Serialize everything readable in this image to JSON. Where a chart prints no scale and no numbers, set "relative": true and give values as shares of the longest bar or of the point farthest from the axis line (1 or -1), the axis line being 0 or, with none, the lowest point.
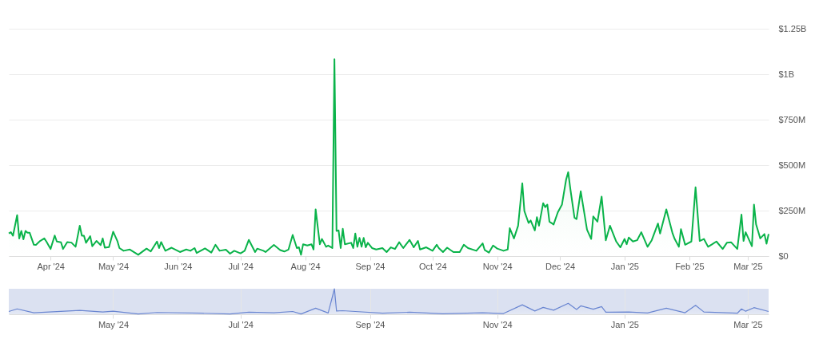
{
  "chart_data": [
    {
      "type": "area",
      "x": [
        "2024-03-12",
        "2024-03-13",
        "2024-03-14",
        "2024-03-16",
        "2024-03-17",
        "2024-03-18",
        "2024-03-19",
        "2024-03-20",
        "2024-03-21",
        "2024-03-22",
        "2024-03-24",
        "2024-03-25",
        "2024-03-27",
        "2024-03-29",
        "2024-03-30",
        "2024-04-01",
        "2024-04-03",
        "2024-04-04",
        "2024-04-06",
        "2024-04-07",
        "2024-04-09",
        "2024-04-11",
        "2024-04-13",
        "2024-04-15",
        "2024-04-16",
        "2024-04-17",
        "2024-04-18",
        "2024-04-20",
        "2024-04-21",
        "2024-04-23",
        "2024-04-25",
        "2024-04-26",
        "2024-04-27",
        "2024-04-29",
        "2024-05-01",
        "2024-05-03",
        "2024-05-04",
        "2024-05-06",
        "2024-05-09",
        "2024-05-13",
        "2024-05-17",
        "2024-05-19",
        "2024-05-22",
        "2024-05-23",
        "2024-05-24",
        "2024-05-26",
        "2024-05-29",
        "2024-06-02",
        "2024-06-05",
        "2024-06-07",
        "2024-06-09",
        "2024-06-10",
        "2024-06-14",
        "2024-06-17",
        "2024-06-19",
        "2024-06-21",
        "2024-06-24",
        "2024-06-26",
        "2024-06-28",
        "2024-07-01",
        "2024-07-03",
        "2024-07-05",
        "2024-07-08",
        "2024-07-09",
        "2024-07-12",
        "2024-07-13",
        "2024-07-17",
        "2024-07-20",
        "2024-07-22",
        "2024-07-24",
        "2024-07-26",
        "2024-07-28",
        "2024-07-29",
        "2024-07-30",
        "2024-07-31",
        "2024-08-02",
        "2024-08-04",
        "2024-08-05",
        "2024-08-06",
        "2024-08-08",
        "2024-08-09",
        "2024-08-11",
        "2024-08-12",
        "2024-08-14",
        "2024-08-15",
        "2024-08-16",
        "2024-08-17",
        "2024-08-18",
        "2024-08-19",
        "2024-08-20",
        "2024-08-23",
        "2024-08-24",
        "2024-08-25",
        "2024-08-26",
        "2024-08-27",
        "2024-08-28",
        "2024-08-29",
        "2024-08-30",
        "2024-08-31",
        "2024-09-02",
        "2024-09-04",
        "2024-09-07",
        "2024-09-09",
        "2024-09-11",
        "2024-09-13",
        "2024-09-15",
        "2024-09-17",
        "2024-09-20",
        "2024-09-22",
        "2024-09-24",
        "2024-09-25",
        "2024-09-28",
        "2024-10-01",
        "2024-10-03",
        "2024-10-04",
        "2024-10-06",
        "2024-10-08",
        "2024-10-11",
        "2024-10-14",
        "2024-10-16",
        "2024-10-18",
        "2024-10-22",
        "2024-10-25",
        "2024-10-26",
        "2024-10-28",
        "2024-10-30",
        "2024-11-01",
        "2024-11-04",
        "2024-11-06",
        "2024-11-07",
        "2024-11-09",
        "2024-11-11",
        "2024-11-13",
        "2024-11-14",
        "2024-11-16",
        "2024-11-17",
        "2024-11-19",
        "2024-11-20",
        "2024-11-21",
        "2024-11-23",
        "2024-11-24",
        "2024-11-25",
        "2024-11-26",
        "2024-11-28",
        "2024-11-30",
        "2024-12-02",
        "2024-12-04",
        "2024-12-05",
        "2024-12-06",
        "2024-12-08",
        "2024-12-09",
        "2024-12-11",
        "2024-12-12",
        "2024-12-14",
        "2024-12-16",
        "2024-12-17",
        "2024-12-19",
        "2024-12-21",
        "2024-12-23",
        "2024-12-25",
        "2024-12-28",
        "2024-12-30",
        "2025-01-01",
        "2025-01-02",
        "2025-01-03",
        "2025-01-05",
        "2025-01-07",
        "2025-01-09",
        "2025-01-12",
        "2025-01-14",
        "2025-01-17",
        "2025-01-18",
        "2025-01-21",
        "2025-01-24",
        "2025-01-25",
        "2025-01-27",
        "2025-01-28",
        "2025-01-30",
        "2025-02-02",
        "2025-02-04",
        "2025-02-06",
        "2025-02-08",
        "2025-02-10",
        "2025-02-12",
        "2025-02-14",
        "2025-02-17",
        "2025-02-19",
        "2025-02-21",
        "2025-02-24",
        "2025-02-26",
        "2025-02-27",
        "2025-02-28",
        "2025-03-03",
        "2025-03-04",
        "2025-03-05",
        "2025-03-07",
        "2025-03-09",
        "2025-03-10",
        "2025-03-11"
      ],
      "series": [
        {
          "color": "#0ab34a",
          "values": [
            124000000.0,
            131000000.0,
            112000000.0,
            225000000.0,
            97000000.0,
            138000000.0,
            92000000.0,
            138000000.0,
            128000000.0,
            128000000.0,
            62000000.0,
            61000000.0,
            83000000.0,
            97000000.0,
            80000000.0,
            39000000.0,
            113000000.0,
            80000000.0,
            76000000.0,
            39000000.0,
            77000000.0,
            74000000.0,
            51000000.0,
            167000000.0,
            112000000.0,
            112000000.0,
            73000000.0,
            109000000.0,
            54000000.0,
            83000000.0,
            60000000.0,
            97000000.0,
            46000000.0,
            49000000.0,
            134000000.0,
            83000000.0,
            44000000.0,
            29000000.0,
            36000000.0,
            7000000.0,
            41000000.0,
            25000000.0,
            80000000.0,
            44000000.0,
            77000000.0,
            29000000.0,
            46000000.0,
            22000000.0,
            36000000.0,
            29000000.0,
            44000000.0,
            17000000.0,
            42000000.0,
            19000000.0,
            62000000.0,
            29000000.0,
            35000000.0,
            13000000.0,
            29000000.0,
            15000000.0,
            29000000.0,
            89000000.0,
            22000000.0,
            41000000.0,
            29000000.0,
            22000000.0,
            61000000.0,
            33000000.0,
            25000000.0,
            36000000.0,
            116000000.0,
            44000000.0,
            48000000.0,
            7000000.0,
            65000000.0,
            58000000.0,
            65000000.0,
            36000000.0,
            257000000.0,
            65000000.0,
            94000000.0,
            51000000.0,
            58000000.0,
            44000000.0,
            1082000000.0,
            138000000.0,
            141000000.0,
            44000000.0,
            150000000.0,
            65000000.0,
            73000000.0,
            44000000.0,
            124000000.0,
            51000000.0,
            100000000.0,
            51000000.0,
            100000000.0,
            48000000.0,
            73000000.0,
            44000000.0,
            36000000.0,
            44000000.0,
            22000000.0,
            48000000.0,
            39000000.0,
            76000000.0,
            44000000.0,
            89000000.0,
            48000000.0,
            83000000.0,
            36000000.0,
            48000000.0,
            29000000.0,
            62000000.0,
            44000000.0,
            22000000.0,
            46000000.0,
            22000000.0,
            22000000.0,
            62000000.0,
            44000000.0,
            29000000.0,
            70000000.0,
            33000000.0,
            19000000.0,
            58000000.0,
            41000000.0,
            29000000.0,
            36000000.0,
            153000000.0,
            97000000.0,
            167000000.0,
            400000000.0,
            247000000.0,
            182000000.0,
            196000000.0,
            141000000.0,
            214000000.0,
            167000000.0,
            291000000.0,
            269000000.0,
            283000000.0,
            189000000.0,
            174000000.0,
            240000000.0,
            283000000.0,
            421000000.0,
            461000000.0,
            371000000.0,
            211000000.0,
            203000000.0,
            356000000.0,
            286000000.0,
            145000000.0,
            94000000.0,
            218000000.0,
            189000000.0,
            327000000.0,
            87000000.0,
            167000000.0,
            80000000.0,
            48000000.0,
            94000000.0,
            65000000.0,
            102000000.0,
            80000000.0,
            87000000.0,
            131000000.0,
            51000000.0,
            87000000.0,
            179000000.0,
            124000000.0,
            257000000.0,
            124000000.0,
            94000000.0,
            51000000.0,
            148000000.0,
            62000000.0,
            80000000.0,
            378000000.0,
            83000000.0,
            94000000.0,
            51000000.0,
            65000000.0,
            80000000.0,
            39000000.0,
            73000000.0,
            76000000.0,
            39000000.0,
            228000000.0,
            83000000.0,
            131000000.0,
            54000000.0,
            283000000.0,
            174000000.0,
            97000000.0,
            121000000.0,
            68000000.0,
            121000000.0
          ]
        }
      ],
      "xlim": [
        "2024-03-12",
        "2025-03-11"
      ],
      "xticks": [
        {
          "value": "2024-04-01",
          "label": "Apr '24"
        },
        {
          "value": "2024-05-01",
          "label": "May '24"
        },
        {
          "value": "2024-06-01",
          "label": "Jun '24"
        },
        {
          "value": "2024-07-01",
          "label": "Jul '24"
        },
        {
          "value": "2024-08-01",
          "label": "Aug '24"
        },
        {
          "value": "2024-09-01",
          "label": "Sep '24"
        },
        {
          "value": "2024-10-01",
          "label": "Oct '24"
        },
        {
          "value": "2024-11-01",
          "label": "Nov '24"
        },
        {
          "value": "2024-12-01",
          "label": "Dec '24"
        },
        {
          "value": "2025-01-01",
          "label": "Jan '25"
        },
        {
          "value": "2025-02-01",
          "label": "Feb '25"
        },
        {
          "value": "2025-03-01",
          "label": "Mar '25"
        }
      ],
      "ylim": [
        0,
        1250000000
      ],
      "yticks": [
        {
          "value": 0,
          "label": "$0"
        },
        {
          "value": 250000000,
          "label": "$250M"
        },
        {
          "value": 500000000,
          "label": "$500M"
        },
        {
          "value": 750000000,
          "label": "$750M"
        },
        {
          "value": 1000000000,
          "label": "$1B"
        },
        {
          "value": 1250000000,
          "label": "$1.25B"
        }
      ],
      "grid": "y"
    },
    {
      "type": "area",
      "relative": true,
      "x": [
        "2024-03-12",
        "2024-03-16",
        "2024-03-24",
        "2024-04-15",
        "2024-04-26",
        "2024-05-01",
        "2024-05-13",
        "2024-05-22",
        "2024-06-13",
        "2024-06-26",
        "2024-07-05",
        "2024-07-17",
        "2024-07-26",
        "2024-07-30",
        "2024-08-06",
        "2024-08-12",
        "2024-08-15",
        "2024-08-16",
        "2024-08-19",
        "2024-08-25",
        "2024-09-07",
        "2024-09-20",
        "2024-10-06",
        "2024-10-25",
        "2024-11-04",
        "2024-11-13",
        "2024-11-19",
        "2024-11-23",
        "2024-11-28",
        "2024-12-05",
        "2024-12-09",
        "2024-12-11",
        "2024-12-17",
        "2024-12-21",
        "2024-12-23",
        "2025-01-03",
        "2025-01-12",
        "2025-01-21",
        "2025-01-30",
        "2025-02-04",
        "2025-02-08",
        "2025-02-24",
        "2025-02-26",
        "2025-02-28",
        "2025-03-04",
        "2025-03-11"
      ],
      "series": [
        {
          "color": "#6a86d1",
          "values": [
            0.11,
            0.21,
            0.06,
            0.15,
            0.09,
            0.12,
            0.01,
            0.07,
            0.04,
            0.01,
            0.08,
            0.06,
            0.11,
            0.01,
            0.24,
            0.05,
            1,
            0.13,
            0.14,
            0.11,
            0.04,
            0.08,
            0.02,
            0.06,
            0.03,
            0.37,
            0.13,
            0.27,
            0.16,
            0.43,
            0.19,
            0.33,
            0.2,
            0.3,
            0.08,
            0.09,
            0.05,
            0.24,
            0.06,
            0.35,
            0.09,
            0.04,
            0.21,
            0.12,
            0.26,
            0.11
          ]
        }
      ],
      "xlim": [
        "2024-03-12",
        "2025-03-11"
      ],
      "xticks": [
        {
          "value": "2024-05-01",
          "label": "May '24"
        },
        {
          "value": "2024-07-01",
          "label": "Jul '24"
        },
        {
          "value": "2024-09-01",
          "label": "Sep '24"
        },
        {
          "value": "2024-11-01",
          "label": "Nov '24"
        },
        {
          "value": "2025-01-01",
          "label": "Jan '25"
        },
        {
          "value": "2025-03-01",
          "label": "Mar '25"
        }
      ],
      "grid": "x",
      "tick_labels": "x"
    }
  ]
}
